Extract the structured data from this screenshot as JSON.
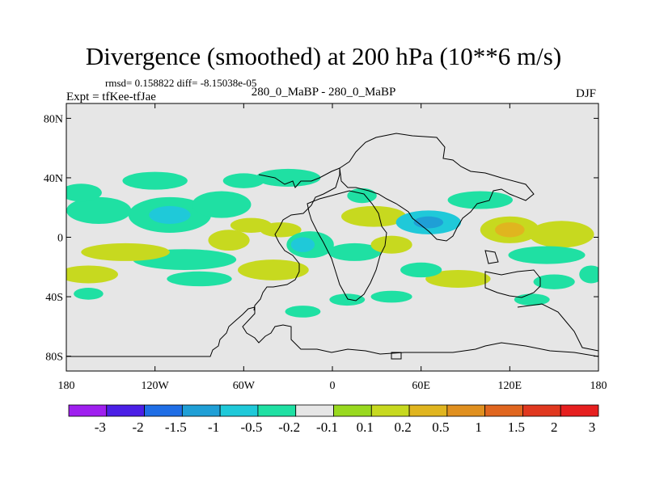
{
  "title": "Divergence (smoothed) at 200 hPa (10**6 m/s)",
  "stats": "rmsd= 0.158822 diff= -8.15038e-05",
  "expt": "Expt = tfKee-tfJae",
  "subtitle": "280_0_MaBP - 280_0_MaBP",
  "season": "DJF",
  "map": {
    "lon_range": [
      -180,
      180
    ],
    "lat_range": [
      -90,
      90
    ],
    "background_color": "#e6e6e6",
    "lon_ticks": [
      "180",
      "120W",
      "60W",
      "0",
      "60E",
      "120E",
      "180"
    ],
    "lat_ticks": [
      "80N",
      "40N",
      "0",
      "40S",
      "80S"
    ]
  },
  "colorbar": {
    "colors": [
      "#9f1fef",
      "#4b1fe6",
      "#1f6ee6",
      "#1f9fd6",
      "#1fc9d9",
      "#1fe0a3",
      "#e6e6e6",
      "#99d91f",
      "#c7d91f",
      "#e0b51f",
      "#e0901f",
      "#e0661f",
      "#e0381f",
      "#e61f1f"
    ],
    "labels": [
      "-3",
      "-2",
      "-1.5",
      "-1",
      "-0.5",
      "-0.2",
      "-0.1",
      "0.1",
      "0.2",
      "0.5",
      "1",
      "1.5",
      "2",
      "3"
    ]
  },
  "features": [
    {
      "lon": -158,
      "lat": 18,
      "rx": 22,
      "ry": 9,
      "color": "#1fe0a3"
    },
    {
      "lon": -170,
      "lat": 30,
      "rx": 14,
      "ry": 6,
      "color": "#1fe0a3"
    },
    {
      "lon": -120,
      "lat": 38,
      "rx": 22,
      "ry": 6,
      "color": "#1fe0a3"
    },
    {
      "lon": -110,
      "lat": 15,
      "rx": 28,
      "ry": 12,
      "color": "#1fe0a3"
    },
    {
      "lon": -110,
      "lat": 15,
      "rx": 14,
      "ry": 6,
      "color": "#1fc9d9"
    },
    {
      "lon": -75,
      "lat": 22,
      "rx": 20,
      "ry": 9,
      "color": "#1fe0a3"
    },
    {
      "lon": -60,
      "lat": 38,
      "rx": 14,
      "ry": 5,
      "color": "#1fe0a3"
    },
    {
      "lon": -30,
      "lat": 40,
      "rx": 22,
      "ry": 6,
      "color": "#1fe0a3"
    },
    {
      "lon": -70,
      "lat": -2,
      "rx": 14,
      "ry": 7,
      "color": "#c7d91f"
    },
    {
      "lon": -55,
      "lat": 8,
      "rx": 14,
      "ry": 5,
      "color": "#c7d91f"
    },
    {
      "lon": -35,
      "lat": 5,
      "rx": 14,
      "ry": 5,
      "color": "#c7d91f"
    },
    {
      "lon": -15,
      "lat": -5,
      "rx": 16,
      "ry": 9,
      "color": "#1fe0a3"
    },
    {
      "lon": -20,
      "lat": -5,
      "rx": 8,
      "ry": 5,
      "color": "#1fc9d9"
    },
    {
      "lon": -40,
      "lat": -22,
      "rx": 24,
      "ry": 7,
      "color": "#c7d91f"
    },
    {
      "lon": 20,
      "lat": 28,
      "rx": 10,
      "ry": 5,
      "color": "#1fe0a3"
    },
    {
      "lon": 28,
      "lat": 14,
      "rx": 22,
      "ry": 7,
      "color": "#c7d91f"
    },
    {
      "lon": 15,
      "lat": -10,
      "rx": 18,
      "ry": 6,
      "color": "#1fe0a3"
    },
    {
      "lon": 40,
      "lat": -5,
      "rx": 14,
      "ry": 6,
      "color": "#c7d91f"
    },
    {
      "lon": 65,
      "lat": 10,
      "rx": 22,
      "ry": 8,
      "color": "#1fc9d9"
    },
    {
      "lon": 65,
      "lat": 10,
      "rx": 10,
      "ry": 4,
      "color": "#1f9fd6"
    },
    {
      "lon": 100,
      "lat": 25,
      "rx": 22,
      "ry": 6,
      "color": "#1fe0a3"
    },
    {
      "lon": 120,
      "lat": 5,
      "rx": 20,
      "ry": 9,
      "color": "#c7d91f"
    },
    {
      "lon": 120,
      "lat": 5,
      "rx": 10,
      "ry": 5,
      "color": "#e0b51f"
    },
    {
      "lon": 155,
      "lat": 2,
      "rx": 22,
      "ry": 9,
      "color": "#c7d91f"
    },
    {
      "lon": 145,
      "lat": -12,
      "rx": 26,
      "ry": 6,
      "color": "#1fe0a3"
    },
    {
      "lon": -100,
      "lat": -15,
      "rx": 35,
      "ry": 7,
      "color": "#1fe0a3"
    },
    {
      "lon": -140,
      "lat": -10,
      "rx": 30,
      "ry": 6,
      "color": "#c7d91f"
    },
    {
      "lon": -165,
      "lat": -25,
      "rx": 20,
      "ry": 6,
      "color": "#c7d91f"
    },
    {
      "lon": -90,
      "lat": -28,
      "rx": 22,
      "ry": 5,
      "color": "#1fe0a3"
    },
    {
      "lon": 85,
      "lat": -28,
      "rx": 22,
      "ry": 6,
      "color": "#c7d91f"
    },
    {
      "lon": 150,
      "lat": -30,
      "rx": 14,
      "ry": 5,
      "color": "#1fe0a3"
    },
    {
      "lon": 60,
      "lat": -22,
      "rx": 14,
      "ry": 5,
      "color": "#1fe0a3"
    },
    {
      "lon": -20,
      "lat": -50,
      "rx": 12,
      "ry": 4,
      "color": "#1fe0a3"
    },
    {
      "lon": 10,
      "lat": -42,
      "rx": 12,
      "ry": 4,
      "color": "#1fe0a3"
    },
    {
      "lon": 40,
      "lat": -40,
      "rx": 14,
      "ry": 4,
      "color": "#1fe0a3"
    },
    {
      "lon": -165,
      "lat": -38,
      "rx": 10,
      "ry": 4,
      "color": "#1fe0a3"
    },
    {
      "lon": 135,
      "lat": -42,
      "rx": 12,
      "ry": 4,
      "color": "#1fe0a3"
    },
    {
      "lon": 175,
      "lat": -25,
      "rx": 8,
      "ry": 6,
      "color": "#1fe0a3"
    }
  ]
}
